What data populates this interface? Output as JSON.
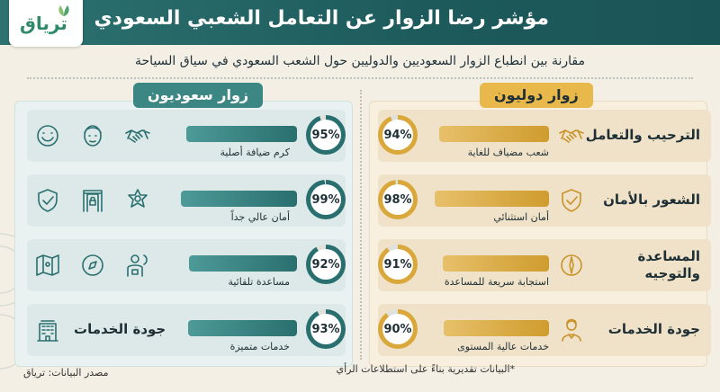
{
  "header": {
    "title": "مؤشر رضا الزوار عن التعامل الشعبي السعودي",
    "logo": "ترياق"
  },
  "subtitle": "مقارنة بين انطباع الزوار السعوديين والدوليين حول الشعب السعودي في سياق السياحة",
  "colors": {
    "teal": "#2a6f6f",
    "gold": "#d9a73a",
    "header": "#1d5a5c"
  },
  "chart_data": {
    "type": "bar",
    "title": "مؤشر رضا الزوار عن التعامل الشعبي السعودي",
    "ylim": [
      0,
      100
    ],
    "categories": [
      "الترحيب والتعامل",
      "الشعور بالأمان",
      "المساعدة والتوجيه",
      "جودة الخدمات"
    ],
    "series": [
      {
        "name": "زوار دوليون",
        "values": [
          94,
          98,
          91,
          90
        ],
        "labels": [
          "شعب مضياف للغاية",
          "أمان استثنائي",
          "استجابة سريعة للمساعدة",
          "خدمات عالية المستوى"
        ]
      },
      {
        "name": "زوار سعوديون",
        "values": [
          95,
          99,
          92,
          93
        ],
        "labels": [
          "كرم ضيافة أصلية",
          "أمان عالي جداً",
          "مساعدة تلقائية",
          "خدمات متميزة"
        ]
      }
    ]
  },
  "footer": {
    "note": "*البيانات تقديرية بناءً على استطلاعات الرأي",
    "source": "مصدر البيانات: ترياق"
  },
  "icons": {
    "right": [
      "handshake-icon",
      "shield-check-icon",
      "compass-person-icon",
      "service-staff-icon"
    ],
    "left": [
      [
        "handshake-icon",
        "man-face-icon",
        "smile-icon"
      ],
      [
        "police-badge-icon",
        "security-gate-icon",
        "shield-check-icon"
      ],
      [
        "guide-person-icon",
        "compass-icon",
        "map-icon"
      ],
      [
        "hotel-icon"
      ]
    ]
  }
}
